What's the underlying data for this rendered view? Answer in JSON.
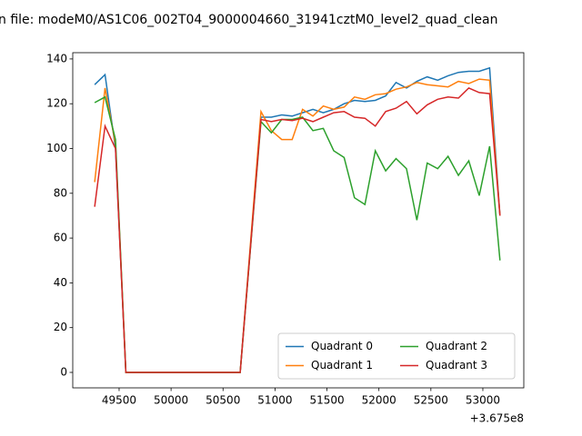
{
  "chart_data": {
    "type": "line",
    "title": "n file: modeM0/AS1C06_002T04_9000004660_31941cztM0_level2_quad_clean",
    "x_offset_label": "+3.675e8",
    "x": [
      49265,
      49365,
      49465,
      49565,
      49665,
      49765,
      49865,
      49965,
      50065,
      50165,
      50265,
      50365,
      50465,
      50565,
      50665,
      50865,
      50965,
      51065,
      51165,
      51265,
      51365,
      51465,
      51565,
      51665,
      51765,
      51865,
      51965,
      52065,
      52165,
      52265,
      52365,
      52465,
      52565,
      52665,
      52765,
      52865,
      52965,
      53065,
      53165
    ],
    "series": [
      {
        "name": "Quadrant 0",
        "color": "#1f77b4",
        "values": [
          128.5,
          133,
          100,
          0,
          0,
          0,
          0,
          0,
          0,
          0,
          0,
          0,
          0,
          0,
          0,
          114,
          114,
          115,
          114.5,
          116,
          117.5,
          116,
          117.5,
          120,
          121.5,
          121,
          121.5,
          123.5,
          129.5,
          127,
          130,
          132,
          130.5,
          132.5,
          134,
          134.5,
          134.5,
          136,
          70
        ]
      },
      {
        "name": "Quadrant 1",
        "color": "#ff7f0e",
        "values": [
          85,
          127,
          102,
          0,
          0,
          0,
          0,
          0,
          0,
          0,
          0,
          0,
          0,
          0,
          0,
          116.5,
          108,
          104,
          104,
          117.5,
          114.5,
          119,
          117.5,
          118.5,
          123,
          122,
          124,
          124.5,
          126.5,
          127.5,
          129.5,
          128.5,
          128,
          127.5,
          130,
          129,
          131,
          130.5,
          70
        ]
      },
      {
        "name": "Quadrant 2",
        "color": "#2ca02c",
        "values": [
          120.5,
          123,
          104,
          0,
          0,
          0,
          0,
          0,
          0,
          0,
          0,
          0,
          0,
          0,
          0,
          112,
          107,
          113,
          113,
          114,
          108,
          109,
          99,
          96,
          78,
          75,
          99,
          90,
          95.5,
          91,
          68,
          93.5,
          91,
          96.5,
          88,
          94.5,
          79,
          101,
          50
        ]
      },
      {
        "name": "Quadrant 3",
        "color": "#d62728",
        "values": [
          74,
          110,
          100,
          0,
          0,
          0,
          0,
          0,
          0,
          0,
          0,
          0,
          0,
          0,
          0,
          113,
          112,
          113,
          112.5,
          113.5,
          112,
          114,
          116,
          116.5,
          114,
          113.5,
          110,
          116.5,
          118,
          121,
          115.5,
          119.5,
          122,
          123,
          122.5,
          127,
          125,
          124.5,
          70
        ]
      }
    ],
    "xlim": [
      49054,
      53394
    ],
    "ylim": [
      -6.9,
      142.8
    ],
    "xticks": [
      49500,
      50000,
      50500,
      51000,
      51500,
      52000,
      52500,
      53000
    ],
    "yticks": [
      0,
      20,
      40,
      60,
      80,
      100,
      120,
      140
    ],
    "legend": "lower right",
    "legend_columns": 2
  }
}
